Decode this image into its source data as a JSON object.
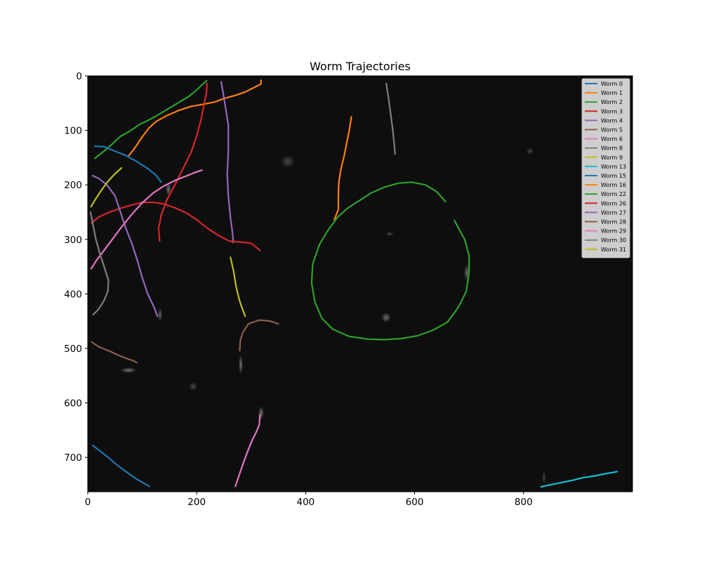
{
  "chart_data": {
    "type": "line",
    "title": "Worm Trajectories",
    "xlabel": "",
    "ylabel": "",
    "xlim": [
      0,
      1000
    ],
    "ylim": [
      763,
      0
    ],
    "y_inverted": true,
    "background": "dark microscope image",
    "grid": false,
    "legend_placement": "top-right",
    "xticks": [
      0,
      200,
      400,
      600,
      800
    ],
    "yticks": [
      0,
      100,
      200,
      300,
      400,
      500,
      600,
      700
    ],
    "series": [
      {
        "name": "Worm 0",
        "color": "#1f77b4",
        "points": [
          [
            9,
            678
          ],
          [
            25,
            690
          ],
          [
            40,
            702
          ],
          [
            55,
            715
          ],
          [
            70,
            726
          ],
          [
            90,
            740
          ],
          [
            113,
            753
          ]
        ]
      },
      {
        "name": "Worm 1",
        "color": "#ff7f0e",
        "points": [
          [
            75,
            147
          ],
          [
            88,
            130
          ],
          [
            100,
            112
          ],
          [
            112,
            96
          ],
          [
            125,
            84
          ],
          [
            145,
            73
          ],
          [
            168,
            63
          ],
          [
            190,
            56
          ],
          [
            213,
            52
          ],
          [
            233,
            48
          ],
          [
            252,
            41
          ],
          [
            270,
            36
          ],
          [
            288,
            30
          ],
          [
            304,
            22
          ],
          [
            318,
            15
          ],
          [
            318,
            8
          ]
        ]
      },
      {
        "name": "Worm 2",
        "color": "#2ca02c",
        "points": [
          [
            13,
            151
          ],
          [
            30,
            138
          ],
          [
            45,
            125
          ],
          [
            60,
            111
          ],
          [
            78,
            101
          ],
          [
            95,
            89
          ],
          [
            110,
            82
          ],
          [
            125,
            74
          ],
          [
            140,
            65
          ],
          [
            155,
            56
          ],
          [
            170,
            47
          ],
          [
            185,
            38
          ],
          [
            200,
            26
          ],
          [
            210,
            16
          ],
          [
            218,
            9
          ]
        ]
      },
      {
        "name": "Worm 3",
        "color": "#d62728",
        "points": [
          [
            132,
            303
          ],
          [
            130,
            280
          ],
          [
            135,
            255
          ],
          [
            145,
            228
          ],
          [
            160,
            200
          ],
          [
            175,
            170
          ],
          [
            190,
            140
          ],
          [
            200,
            110
          ],
          [
            208,
            80
          ],
          [
            214,
            50
          ],
          [
            218,
            30
          ],
          [
            219,
            14
          ]
        ]
      },
      {
        "name": "Worm 4",
        "color": "#9467bd",
        "points": [
          [
            245,
            11
          ],
          [
            250,
            40
          ],
          [
            258,
            90
          ],
          [
            258,
            140
          ],
          [
            256,
            180
          ],
          [
            258,
            220
          ],
          [
            262,
            260
          ],
          [
            266,
            290
          ],
          [
            267,
            306
          ]
        ]
      },
      {
        "name": "Worm 5",
        "color": "#8c5e4e",
        "points": [
          [
            279,
            504
          ],
          [
            280,
            485
          ],
          [
            285,
            470
          ],
          [
            295,
            455
          ],
          [
            315,
            448
          ],
          [
            335,
            450
          ],
          [
            350,
            455
          ]
        ]
      },
      {
        "name": "Worm 6",
        "color": "#e377c2",
        "points": [
          [
            271,
            753
          ],
          [
            277,
            735
          ],
          [
            285,
            712
          ],
          [
            293,
            690
          ],
          [
            302,
            668
          ],
          [
            310,
            652
          ],
          [
            315,
            640
          ],
          [
            316,
            622
          ]
        ]
      },
      {
        "name": "Worm 8",
        "color": "#7f7f7f",
        "points": [
          [
            548,
            14
          ],
          [
            552,
            40
          ],
          [
            556,
            70
          ],
          [
            560,
            100
          ],
          [
            563,
            130
          ],
          [
            564,
            143
          ]
        ]
      },
      {
        "name": "Worm 9",
        "color": "#bcbd22",
        "points": [
          [
            262,
            333
          ],
          [
            268,
            360
          ],
          [
            272,
            385
          ],
          [
            278,
            410
          ],
          [
            283,
            425
          ],
          [
            289,
            441
          ]
        ]
      },
      {
        "name": "Worm 13",
        "color": "#17becf",
        "points": [
          [
            832,
            754
          ],
          [
            850,
            750
          ],
          [
            870,
            746
          ],
          [
            890,
            742
          ],
          [
            910,
            737
          ],
          [
            930,
            734
          ],
          [
            950,
            730
          ],
          [
            972,
            726
          ]
        ]
      },
      {
        "name": "Worm 15",
        "color": "#1f77b4",
        "points": [
          [
            13,
            129
          ],
          [
            30,
            130
          ],
          [
            50,
            138
          ],
          [
            70,
            146
          ],
          [
            90,
            157
          ],
          [
            110,
            170
          ],
          [
            125,
            182
          ],
          [
            135,
            195
          ]
        ]
      },
      {
        "name": "Worm 16",
        "color": "#ff7f0e",
        "points": [
          [
            453,
            263
          ],
          [
            460,
            245
          ],
          [
            460,
            220
          ],
          [
            461,
            195
          ],
          [
            465,
            170
          ],
          [
            470,
            150
          ],
          [
            475,
            125
          ],
          [
            480,
            100
          ],
          [
            484,
            75
          ]
        ]
      },
      {
        "name": "Worm 22",
        "color": "#2ca02c",
        "points": [
          [
            657,
            231
          ],
          [
            640,
            212
          ],
          [
            620,
            200
          ],
          [
            595,
            195
          ],
          [
            570,
            197
          ],
          [
            545,
            204
          ],
          [
            520,
            215
          ],
          [
            500,
            228
          ],
          [
            478,
            242
          ],
          [
            458,
            260
          ],
          [
            440,
            285
          ],
          [
            425,
            310
          ],
          [
            413,
            345
          ],
          [
            411,
            380
          ],
          [
            417,
            415
          ],
          [
            430,
            445
          ],
          [
            450,
            465
          ],
          [
            480,
            478
          ],
          [
            515,
            483
          ],
          [
            545,
            484
          ],
          [
            575,
            482
          ],
          [
            605,
            477
          ],
          [
            635,
            466
          ],
          [
            660,
            452
          ],
          [
            680,
            425
          ],
          [
            695,
            395
          ],
          [
            700,
            360
          ],
          [
            700,
            330
          ],
          [
            692,
            300
          ],
          [
            682,
            282
          ],
          [
            673,
            265
          ]
        ]
      },
      {
        "name": "Worm 26",
        "color": "#d62728",
        "points": [
          [
            7,
            270
          ],
          [
            20,
            259
          ],
          [
            40,
            250
          ],
          [
            60,
            243
          ],
          [
            80,
            237
          ],
          [
            100,
            232
          ],
          [
            120,
            232
          ],
          [
            140,
            235
          ],
          [
            160,
            242
          ],
          [
            180,
            251
          ],
          [
            200,
            264
          ],
          [
            220,
            280
          ],
          [
            240,
            293
          ],
          [
            260,
            303
          ],
          [
            280,
            305
          ],
          [
            300,
            307
          ],
          [
            316,
            320
          ]
        ]
      },
      {
        "name": "Worm 27",
        "color": "#9467bd",
        "points": [
          [
            9,
            183
          ],
          [
            20,
            188
          ],
          [
            35,
            200
          ],
          [
            50,
            220
          ],
          [
            60,
            250
          ],
          [
            70,
            280
          ],
          [
            80,
            305
          ],
          [
            90,
            335
          ],
          [
            100,
            370
          ],
          [
            110,
            400
          ],
          [
            122,
            425
          ],
          [
            128,
            441
          ]
        ]
      },
      {
        "name": "Worm 28",
        "color": "#8c5e4e",
        "points": [
          [
            7,
            488
          ],
          [
            20,
            497
          ],
          [
            40,
            505
          ],
          [
            55,
            512
          ],
          [
            70,
            518
          ],
          [
            82,
            522
          ],
          [
            90,
            526
          ]
        ]
      },
      {
        "name": "Worm 29",
        "color": "#e377c2",
        "points": [
          [
            6,
            354
          ],
          [
            15,
            340
          ],
          [
            30,
            320
          ],
          [
            45,
            300
          ],
          [
            60,
            280
          ],
          [
            80,
            255
          ],
          [
            100,
            233
          ],
          [
            120,
            215
          ],
          [
            140,
            202
          ],
          [
            160,
            192
          ],
          [
            180,
            184
          ],
          [
            195,
            178
          ],
          [
            210,
            173
          ]
        ]
      },
      {
        "name": "Worm 30",
        "color": "#7f7f7f",
        "points": [
          [
            5,
            250
          ],
          [
            10,
            275
          ],
          [
            15,
            300
          ],
          [
            22,
            325
          ],
          [
            30,
            350
          ],
          [
            38,
            375
          ],
          [
            37,
            395
          ],
          [
            30,
            412
          ],
          [
            20,
            428
          ],
          [
            10,
            438
          ]
        ]
      },
      {
        "name": "Worm 31",
        "color": "#bcbd22",
        "points": [
          [
            6,
            240
          ],
          [
            15,
            225
          ],
          [
            25,
            210
          ],
          [
            35,
            196
          ],
          [
            45,
            185
          ],
          [
            55,
            175
          ],
          [
            62,
            169
          ]
        ]
      }
    ]
  }
}
